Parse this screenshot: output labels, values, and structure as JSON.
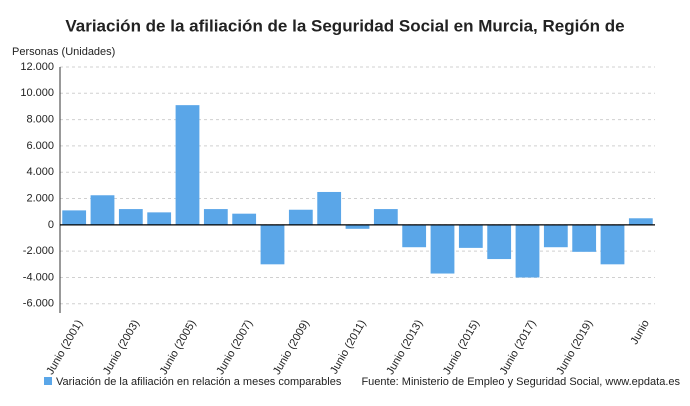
{
  "chart_data": {
    "type": "bar",
    "title": "Variación de la afiliación de la Seguridad Social en Murcia, Región de",
    "y_label": "Personas (Unidades)",
    "categories": [
      "Junio (2001)",
      null,
      "Junio (2003)",
      null,
      "Junio (2005)",
      null,
      "Junio (2007)",
      null,
      "Junio (2009)",
      null,
      "Junio (2011)",
      null,
      "Junio (2013)",
      null,
      "Junio (2015)",
      null,
      "Junio (2017)",
      null,
      "Junio (2019)",
      null,
      "Junio"
    ],
    "series": [
      {
        "name": "Variación de la afiliación en relación a meses comparables",
        "color": "#5aa6e8",
        "values": [
          1100,
          2250,
          1200,
          950,
          9100,
          1200,
          850,
          -3000,
          1150,
          2500,
          -300,
          1200,
          -1700,
          -3700,
          -1750,
          -2600,
          -4000,
          -1700,
          -2050,
          -3000,
          500
        ]
      }
    ],
    "ylim": [
      -6700,
      12000
    ],
    "yticks": [
      {
        "value": -6000,
        "label": "-6.000"
      },
      {
        "value": -4000,
        "label": "-4.000"
      },
      {
        "value": -2000,
        "label": "-2.000"
      },
      0,
      {
        "value": 2000,
        "label": "2.000"
      },
      {
        "value": 4000,
        "label": "4.000"
      },
      {
        "value": 6000,
        "label": "6.000"
      },
      {
        "value": 8000,
        "label": "8.000"
      },
      {
        "value": 10000,
        "label": "10.000"
      },
      {
        "value": 12000,
        "label": "12.000"
      }
    ],
    "grid": true,
    "source": "Fuente: Ministerio de Empleo y Seguridad Social, www.epdata.es"
  }
}
